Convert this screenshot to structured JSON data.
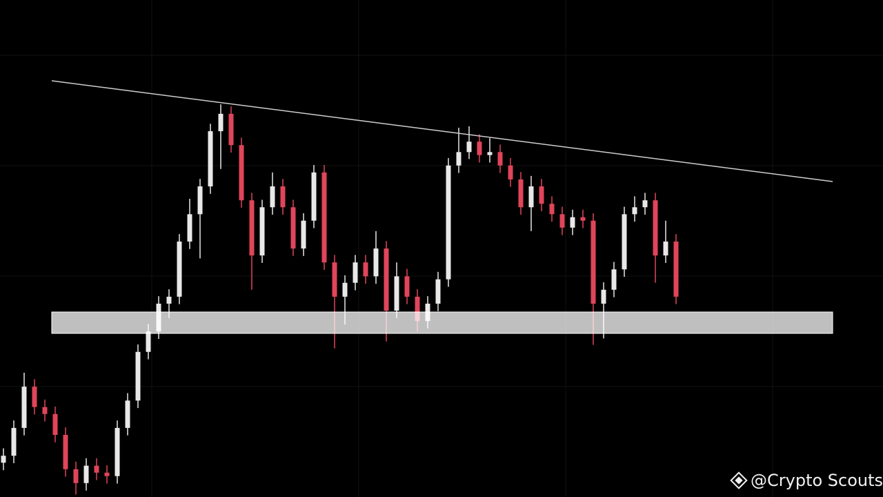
{
  "chart_data": {
    "type": "candlestick",
    "up_color": "#e8e8e8",
    "down_color": "#e0455a",
    "ylim": [
      0,
      100
    ],
    "open": [
      6.9,
      8.3,
      13.9,
      22.2,
      18.1,
      16.7,
      12.5,
      5.6,
      2.8,
      6.3,
      4.9,
      4.2,
      13.9,
      19.4,
      29.2,
      33.3,
      38.9,
      40.3,
      51.4,
      56.9,
      62.5,
      73.6,
      77.1,
      70.8,
      59.7,
      48.6,
      58.3,
      62.5,
      58.3,
      50.0,
      55.6,
      65.3,
      47.2,
      40.3,
      43.1,
      47.2,
      44.4,
      50.0,
      37.5,
      44.4,
      40.3,
      35.4,
      38.9,
      43.8,
      66.7,
      69.4,
      71.5,
      68.8,
      69.4,
      66.7,
      63.9,
      58.3,
      62.5,
      59.0,
      56.9,
      54.2,
      56.3,
      55.6,
      38.9,
      41.7,
      45.8,
      56.9,
      58.3,
      59.7,
      48.6,
      51.4
    ],
    "high": [
      9.8,
      15.4,
      25.0,
      23.7,
      19.6,
      18.2,
      14.0,
      7.1,
      7.8,
      7.8,
      6.4,
      15.4,
      20.9,
      30.7,
      34.8,
      40.4,
      41.8,
      52.9,
      60.0,
      64.0,
      75.1,
      79.0,
      78.6,
      72.3,
      61.2,
      59.8,
      65.3,
      64.0,
      59.8,
      57.1,
      66.8,
      66.8,
      48.7,
      44.6,
      48.7,
      48.7,
      53.5,
      51.5,
      47.2,
      45.9,
      41.8,
      40.4,
      45.3,
      68.2,
      74.3,
      74.6,
      73.0,
      72.2,
      70.9,
      68.2,
      65.4,
      64.6,
      64.0,
      60.5,
      58.4,
      57.8,
      57.8,
      57.1,
      43.2,
      47.3,
      58.4,
      60.5,
      61.2,
      61.2,
      55.6,
      52.9
    ],
    "low": [
      5.4,
      6.8,
      12.4,
      16.6,
      15.2,
      11.0,
      4.1,
      0.5,
      1.3,
      3.4,
      2.7,
      2.7,
      12.4,
      17.9,
      27.7,
      31.8,
      36.0,
      38.8,
      49.9,
      48.0,
      61.0,
      66.0,
      69.3,
      58.2,
      41.7,
      47.1,
      56.8,
      56.8,
      48.5,
      48.5,
      54.1,
      45.7,
      29.9,
      34.7,
      41.6,
      42.9,
      42.9,
      31.3,
      36.0,
      38.8,
      33.3,
      33.9,
      37.4,
      42.3,
      65.2,
      68.0,
      67.3,
      67.3,
      65.2,
      62.4,
      56.8,
      53.5,
      57.5,
      55.4,
      52.7,
      52.7,
      54.1,
      30.6,
      31.9,
      40.2,
      44.3,
      55.4,
      56.8,
      43.1,
      47.1,
      38.8
    ],
    "close": [
      8.3,
      13.9,
      22.2,
      18.1,
      16.7,
      12.5,
      5.6,
      2.8,
      6.3,
      4.9,
      4.2,
      13.9,
      19.4,
      29.2,
      33.3,
      38.9,
      40.3,
      51.4,
      56.9,
      62.5,
      73.6,
      77.1,
      70.8,
      59.7,
      48.6,
      58.3,
      62.5,
      58.3,
      50.0,
      55.6,
      65.3,
      47.2,
      40.3,
      43.1,
      47.2,
      44.4,
      50.0,
      37.5,
      44.4,
      40.3,
      35.4,
      38.9,
      43.8,
      66.7,
      69.4,
      71.5,
      68.8,
      69.4,
      66.7,
      63.9,
      58.3,
      62.5,
      59.0,
      56.9,
      54.2,
      56.3,
      55.6,
      38.9,
      41.7,
      45.8,
      56.9,
      58.3,
      59.7,
      48.6,
      51.4,
      40.3
    ]
  },
  "watermark": "@Crypto Scouts"
}
